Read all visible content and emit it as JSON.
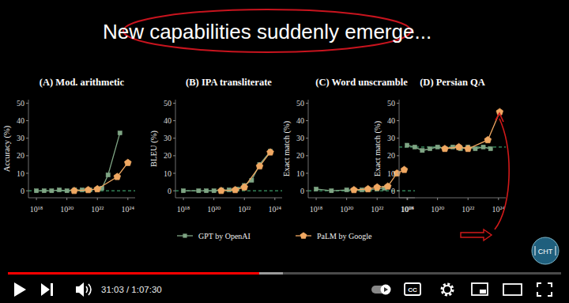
{
  "slide_title": "New capabilities suddenly emerge...",
  "chart_data": [
    {
      "type": "line",
      "title": "(A) Mod. arithmetic",
      "y_label": "Accuracy (%)",
      "log": "x",
      "xlim": [
        3e+17,
        3e+24
      ],
      "xticks": [
        {
          "value": 1e+18,
          "label": "10¹⁸"
        },
        {
          "value": 1e+20,
          "label": "10²⁰"
        },
        {
          "value": 1e+22,
          "label": "10²²"
        },
        {
          "value": 1e+24,
          "label": "10²⁴"
        }
      ],
      "ylim": [
        -4,
        52
      ],
      "yticks": [
        0,
        10,
        20,
        30,
        40,
        50
      ],
      "baseline": 0,
      "series": [
        {
          "color": "#7fa584",
          "marker": "square",
          "x": [
            1e+18,
            3.2e+18,
            1e+19,
            3.2e+19,
            1e+20,
            3.2e+20,
            1e+21,
            3.2e+21,
            1e+22,
            2e+22,
            5e+22,
            3e+23
          ],
          "values": [
            0,
            0,
            0,
            0.5,
            0,
            0.5,
            0.5,
            0.5,
            1,
            1.5,
            9,
            33
          ]
        },
        {
          "color": "#f0a862",
          "marker": "pentagon",
          "x": [
            3e+20,
            2.5e+21,
            1e+22,
            2e+23,
            1e+24
          ],
          "values": [
            0,
            0.5,
            1,
            8,
            16
          ]
        }
      ]
    },
    {
      "type": "line",
      "title": "(B) IPA transliterate",
      "y_label": "BLEU (%)",
      "log": "x",
      "xlim": [
        3e+17,
        3e+24
      ],
      "xticks": [
        {
          "value": 1e+18,
          "label": "10¹⁸"
        },
        {
          "value": 1e+20,
          "label": "10²⁰"
        },
        {
          "value": 1e+22,
          "label": "10²²"
        },
        {
          "value": 1e+24,
          "label": "10²⁴"
        }
      ],
      "ylim": [
        -4,
        52
      ],
      "yticks": [
        0,
        10,
        20,
        30,
        40,
        50
      ],
      "baseline": 0,
      "legend": "bottom",
      "series": [
        {
          "name": "GPT by OpenAI",
          "color": "#7fa584",
          "marker": "square",
          "x": [
            1e+18,
            1e+19,
            3.2e+19,
            1e+20,
            3.2e+20,
            1e+21,
            3.2e+21,
            1e+22,
            3e+22,
            1e+23,
            5e+23
          ],
          "values": [
            0,
            0,
            0,
            0,
            0.5,
            0.5,
            1,
            3,
            6,
            15,
            22.5
          ]
        },
        {
          "name": "PaLM by Google",
          "color": "#f0a862",
          "marker": "pentagon",
          "x": [
            3e+20,
            2.5e+21,
            1e+22,
            1e+23,
            5e+23
          ],
          "values": [
            0,
            0.5,
            2,
            14,
            22
          ]
        }
      ]
    },
    {
      "type": "line",
      "title": "(C) Word unscramble",
      "y_label": "Exact match (%)",
      "log": "x",
      "xlim": [
        3e+17,
        3e+24
      ],
      "xticks": [
        {
          "value": 1e+18,
          "label": "10¹⁸"
        },
        {
          "value": 1e+20,
          "label": "10²⁰"
        },
        {
          "value": 1e+22,
          "label": "10²²"
        },
        {
          "value": 1e+24,
          "label": "10²⁴"
        }
      ],
      "ylim": [
        -4,
        52
      ],
      "yticks": [
        0,
        10,
        20,
        30,
        40,
        50
      ],
      "baseline": 0,
      "series": [
        {
          "color": "#7fa584",
          "marker": "square",
          "x": [
            1e+18,
            1e+19,
            1e+20,
            1e+21,
            1e+22,
            3e+22
          ],
          "values": [
            1,
            0,
            0.5,
            0.5,
            1,
            1.5
          ]
        },
        {
          "color": "#f0a862",
          "marker": "pentagon",
          "x": [
            3e+20,
            2.5e+21,
            1e+22,
            5e+22,
            2e+23,
            6e+23
          ],
          "values": [
            0.5,
            1,
            2,
            2.5,
            10,
            12
          ]
        }
      ]
    },
    {
      "type": "line",
      "title": "(D) Persian QA",
      "y_label": "Exact match (%)",
      "log": "x",
      "xlim": [
        3e+17,
        3e+24
      ],
      "xticks": [
        {
          "value": 1e+18,
          "label": "10¹⁸"
        },
        {
          "value": 1e+20,
          "label": "10²⁰"
        },
        {
          "value": 1e+22,
          "label": "10²²"
        },
        {
          "value": 1e+24,
          "label": "10²⁴"
        }
      ],
      "ylim": [
        -4,
        52
      ],
      "yticks": [
        0,
        10,
        20,
        30,
        40,
        50
      ],
      "baseline": 25,
      "series": [
        {
          "color": "#7fa584",
          "marker": "square",
          "x": [
            1e+18,
            3.2e+18,
            1e+19,
            3.2e+19,
            1e+20,
            3.2e+20,
            1e+21,
            3.2e+21,
            1e+22,
            3e+22,
            1e+23,
            3e+23
          ],
          "values": [
            26,
            25,
            23,
            24,
            25,
            24,
            25,
            24,
            25,
            24,
            25,
            24
          ]
        },
        {
          "color": "#f0a862",
          "marker": "pentagon",
          "x": [
            3e+20,
            2.5e+21,
            1e+22,
            2e+23,
            1.2e+24
          ],
          "values": [
            24,
            25,
            24,
            29,
            45
          ]
        }
      ]
    }
  ],
  "logo": "CHT",
  "player": {
    "time": "31:03 / 1:07:30",
    "captions": "CC"
  }
}
